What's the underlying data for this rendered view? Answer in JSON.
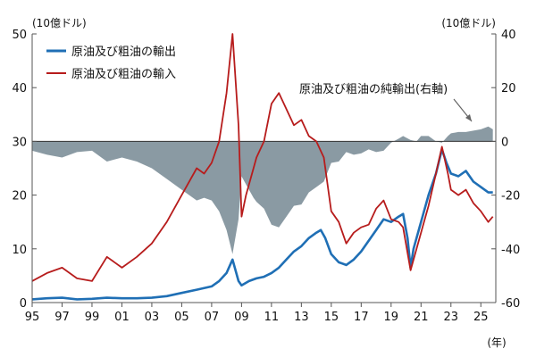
{
  "chart_data": {
    "type": "line",
    "left_axis_unit": "(10億ドル)",
    "right_axis_unit": "(10億ドル)",
    "x_unit": "(年)",
    "x_tick_labels": [
      "95",
      "97",
      "99",
      "01",
      "03",
      "05",
      "07",
      "09",
      "11",
      "13",
      "15",
      "17",
      "19",
      "21",
      "23",
      "25"
    ],
    "x_range": [
      1995.0,
      2026.0
    ],
    "y_left_range": [
      0,
      50
    ],
    "y_left_ticks": [
      "0",
      "10",
      "20",
      "30",
      "40",
      "50"
    ],
    "y_right_range": [
      -60,
      40
    ],
    "y_right_ticks": [
      "-60",
      "-40",
      "-20",
      "0",
      "20",
      "40"
    ],
    "legend_placement": "top-left",
    "annotation": "原油及び粗油の純輸出(右軸)",
    "series": [
      {
        "name": "原油及び粗油の輸出",
        "axis": "left",
        "color": "#1f6fb5",
        "points": [
          [
            1995.0,
            0.6
          ],
          [
            1996.0,
            0.8
          ],
          [
            1997.0,
            0.9
          ],
          [
            1998.0,
            0.6
          ],
          [
            1999.0,
            0.7
          ],
          [
            2000.0,
            0.9
          ],
          [
            2001.0,
            0.8
          ],
          [
            2002.0,
            0.8
          ],
          [
            2003.0,
            0.9
          ],
          [
            2004.0,
            1.2
          ],
          [
            2005.0,
            1.8
          ],
          [
            2006.0,
            2.4
          ],
          [
            2007.0,
            3.0
          ],
          [
            2007.5,
            4.0
          ],
          [
            2008.0,
            5.5
          ],
          [
            2008.4,
            8.0
          ],
          [
            2008.8,
            4.0
          ],
          [
            2009.0,
            3.2
          ],
          [
            2009.5,
            4.0
          ],
          [
            2010.0,
            4.5
          ],
          [
            2010.5,
            4.8
          ],
          [
            2011.0,
            5.5
          ],
          [
            2011.5,
            6.5
          ],
          [
            2012.0,
            8.0
          ],
          [
            2012.5,
            9.5
          ],
          [
            2013.0,
            10.5
          ],
          [
            2013.5,
            12.0
          ],
          [
            2014.0,
            13.0
          ],
          [
            2014.3,
            13.5
          ],
          [
            2014.6,
            12.0
          ],
          [
            2015.0,
            9.0
          ],
          [
            2015.5,
            7.5
          ],
          [
            2016.0,
            7.0
          ],
          [
            2016.5,
            8.0
          ],
          [
            2017.0,
            9.5
          ],
          [
            2017.5,
            11.5
          ],
          [
            2018.0,
            13.5
          ],
          [
            2018.5,
            15.5
          ],
          [
            2019.0,
            15.0
          ],
          [
            2019.5,
            16.0
          ],
          [
            2019.8,
            16.5
          ],
          [
            2020.1,
            12.0
          ],
          [
            2020.3,
            6.5
          ],
          [
            2020.5,
            10.0
          ],
          [
            2021.0,
            15.0
          ],
          [
            2021.5,
            20.0
          ],
          [
            2022.0,
            24.0
          ],
          [
            2022.4,
            28.5
          ],
          [
            2022.7,
            26.0
          ],
          [
            2023.0,
            24.0
          ],
          [
            2023.5,
            23.5
          ],
          [
            2024.0,
            24.5
          ],
          [
            2024.5,
            22.5
          ],
          [
            2025.0,
            21.5
          ],
          [
            2025.5,
            20.5
          ],
          [
            2025.8,
            20.5
          ]
        ]
      },
      {
        "name": "原油及び粗油の輸入",
        "axis": "left",
        "color": "#b71c1c",
        "points": [
          [
            1995.0,
            4.0
          ],
          [
            1996.0,
            5.5
          ],
          [
            1997.0,
            6.5
          ],
          [
            1998.0,
            4.5
          ],
          [
            1999.0,
            4.0
          ],
          [
            2000.0,
            8.5
          ],
          [
            2001.0,
            6.5
          ],
          [
            2002.0,
            8.5
          ],
          [
            2003.0,
            11.0
          ],
          [
            2004.0,
            15.0
          ],
          [
            2005.0,
            20.0
          ],
          [
            2006.0,
            25.0
          ],
          [
            2006.5,
            24.0
          ],
          [
            2007.0,
            26.0
          ],
          [
            2007.5,
            30.0
          ],
          [
            2008.0,
            39.0
          ],
          [
            2008.4,
            50.0
          ],
          [
            2008.8,
            33.0
          ],
          [
            2009.0,
            16.0
          ],
          [
            2009.3,
            20.0
          ],
          [
            2009.8,
            25.0
          ],
          [
            2010.0,
            27.0
          ],
          [
            2010.5,
            30.0
          ],
          [
            2011.0,
            37.0
          ],
          [
            2011.5,
            39.0
          ],
          [
            2012.0,
            36.0
          ],
          [
            2012.5,
            33.0
          ],
          [
            2013.0,
            34.0
          ],
          [
            2013.5,
            31.0
          ],
          [
            2014.0,
            30.0
          ],
          [
            2014.5,
            27.0
          ],
          [
            2015.0,
            17.0
          ],
          [
            2015.5,
            15.0
          ],
          [
            2016.0,
            11.0
          ],
          [
            2016.5,
            13.0
          ],
          [
            2017.0,
            14.0
          ],
          [
            2017.5,
            14.5
          ],
          [
            2018.0,
            17.5
          ],
          [
            2018.5,
            19.0
          ],
          [
            2019.0,
            15.5
          ],
          [
            2019.5,
            15.0
          ],
          [
            2019.8,
            14.0
          ],
          [
            2020.3,
            6.0
          ],
          [
            2020.7,
            10.0
          ],
          [
            2021.0,
            13.0
          ],
          [
            2021.5,
            18.0
          ],
          [
            2022.0,
            24.0
          ],
          [
            2022.4,
            29.0
          ],
          [
            2022.8,
            24.0
          ],
          [
            2023.0,
            21.0
          ],
          [
            2023.5,
            20.0
          ],
          [
            2024.0,
            21.0
          ],
          [
            2024.5,
            18.5
          ],
          [
            2025.0,
            17.0
          ],
          [
            2025.5,
            15.0
          ],
          [
            2025.8,
            16.0
          ]
        ]
      },
      {
        "name": "原油及び粗油の純輸出",
        "axis": "right",
        "color": "#8a9aa3",
        "type": "area",
        "points": [
          [
            1995.0,
            -3.5
          ],
          [
            1996.0,
            -5.0
          ],
          [
            1997.0,
            -6.0
          ],
          [
            1998.0,
            -4.0
          ],
          [
            1999.0,
            -3.5
          ],
          [
            2000.0,
            -7.5
          ],
          [
            2001.0,
            -6.0
          ],
          [
            2002.0,
            -7.5
          ],
          [
            2003.0,
            -10.0
          ],
          [
            2004.0,
            -14.0
          ],
          [
            2005.0,
            -18.0
          ],
          [
            2006.0,
            -22.0
          ],
          [
            2006.5,
            -21.0
          ],
          [
            2007.0,
            -22.0
          ],
          [
            2007.5,
            -26.0
          ],
          [
            2008.0,
            -33.0
          ],
          [
            2008.4,
            -42.0
          ],
          [
            2008.8,
            -29.0
          ],
          [
            2009.0,
            -13.0
          ],
          [
            2009.3,
            -16.0
          ],
          [
            2009.8,
            -21.0
          ],
          [
            2010.0,
            -22.5
          ],
          [
            2010.5,
            -25.0
          ],
          [
            2011.0,
            -31.0
          ],
          [
            2011.5,
            -32.0
          ],
          [
            2012.0,
            -28.0
          ],
          [
            2012.5,
            -24.0
          ],
          [
            2013.0,
            -23.5
          ],
          [
            2013.5,
            -19.0
          ],
          [
            2014.0,
            -17.0
          ],
          [
            2014.5,
            -15.0
          ],
          [
            2015.0,
            -8.0
          ],
          [
            2015.5,
            -7.5
          ],
          [
            2016.0,
            -4.0
          ],
          [
            2016.5,
            -5.0
          ],
          [
            2017.0,
            -4.5
          ],
          [
            2017.5,
            -3.0
          ],
          [
            2018.0,
            -4.0
          ],
          [
            2018.5,
            -3.5
          ],
          [
            2019.0,
            -0.5
          ],
          [
            2019.5,
            1.0
          ],
          [
            2019.8,
            2.0
          ],
          [
            2020.3,
            0.5
          ],
          [
            2020.7,
            0.0
          ],
          [
            2021.0,
            2.0
          ],
          [
            2021.5,
            2.0
          ],
          [
            2022.0,
            0.0
          ],
          [
            2022.4,
            -0.5
          ],
          [
            2022.8,
            2.0
          ],
          [
            2023.0,
            3.0
          ],
          [
            2023.5,
            3.5
          ],
          [
            2024.0,
            3.5
          ],
          [
            2024.5,
            4.0
          ],
          [
            2025.0,
            4.5
          ],
          [
            2025.5,
            5.5
          ],
          [
            2025.8,
            4.5
          ]
        ]
      }
    ]
  }
}
